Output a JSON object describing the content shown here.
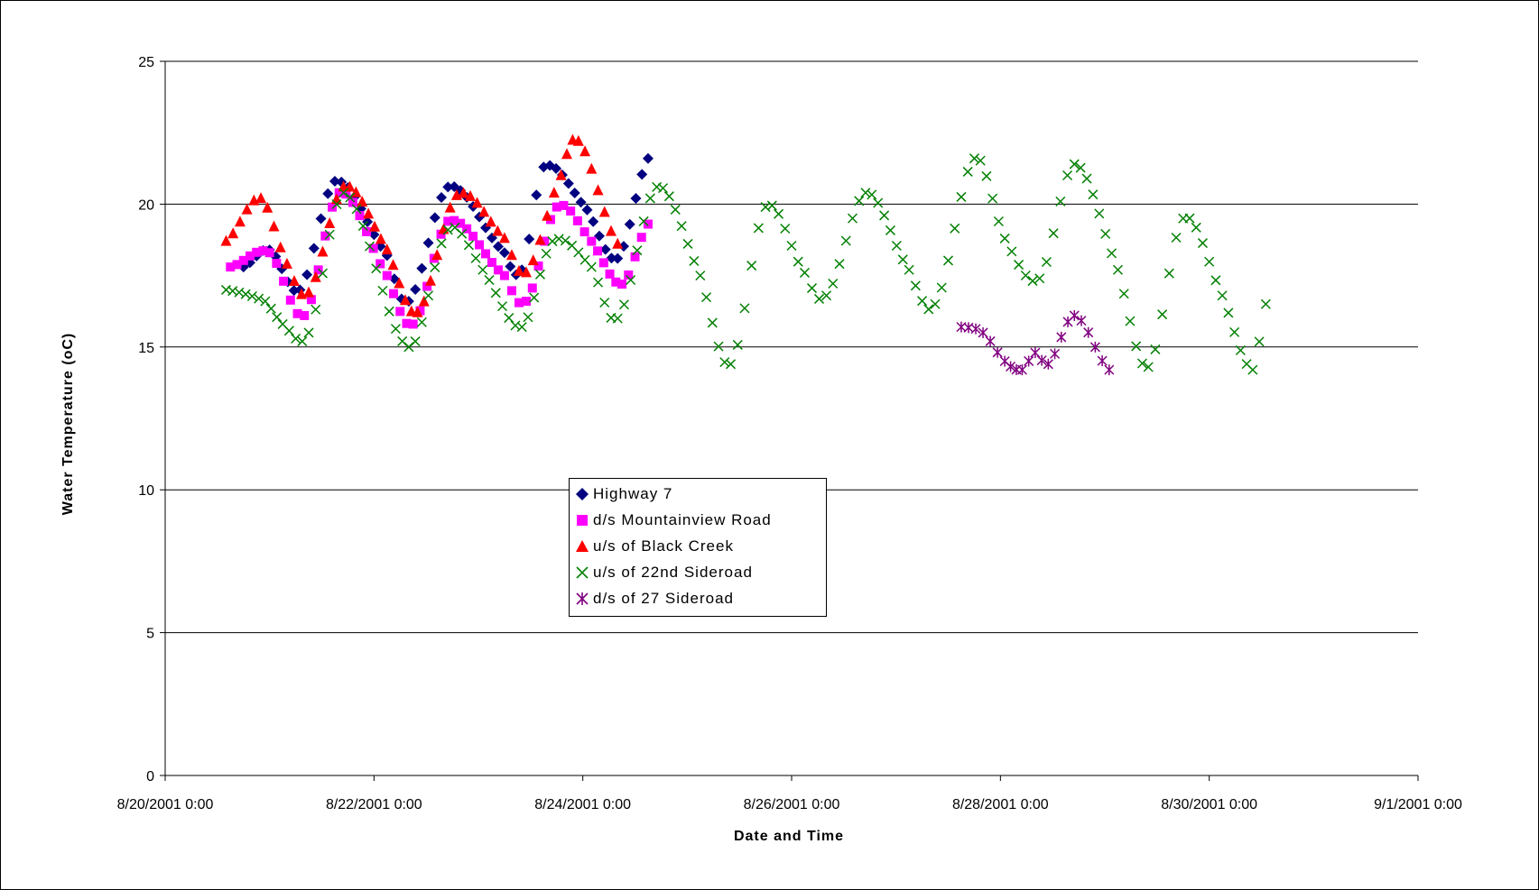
{
  "chart_data": {
    "type": "scatter",
    "xlabel": "Date and Time",
    "ylabel": "Water Temperature (oC)",
    "ylim": [
      0,
      25
    ],
    "yticks": [
      "0",
      "5",
      "10",
      "15",
      "20",
      "25"
    ],
    "xlim": [
      "8/20/2001 0:00",
      "9/1/2001 0:00"
    ],
    "xticks": [
      "8/20/2001 0:00",
      "8/22/2001 0:00",
      "8/24/2001 0:00",
      "8/26/2001 0:00",
      "8/28/2001 0:00",
      "8/30/2001 0:00",
      "9/1/2001 0:00"
    ],
    "grid": "horizontal",
    "legend_position": "center",
    "series": [
      {
        "name": "Highway 7",
        "color": "#000080",
        "marker": "diamond",
        "points": [
          [
            "8/20/2001 18:00",
            17.8
          ],
          [
            "8/21/2001 0:00",
            18.4
          ],
          [
            "8/21/2001 7:00",
            17.0
          ],
          [
            "8/21/2001 15:00",
            20.8
          ],
          [
            "8/22/2001 3:00",
            18.2
          ],
          [
            "8/22/2001 8:00",
            16.6
          ],
          [
            "8/22/2001 17:00",
            20.6
          ],
          [
            "8/23/2001 6:00",
            18.3
          ],
          [
            "8/23/2001 10:00",
            17.7
          ],
          [
            "8/23/2001 15:00",
            21.3
          ],
          [
            "8/24/2001 1:00",
            19.8
          ],
          [
            "8/24/2001 8:00",
            18.1
          ],
          [
            "8/24/2001 15:00",
            21.6
          ]
        ]
      },
      {
        "name": "d/s Mountainview Road",
        "color": "#FF00FF",
        "marker": "square",
        "points": [
          [
            "8/20/2001 15:00",
            17.8
          ],
          [
            "8/21/2001 0:00",
            18.3
          ],
          [
            "8/21/2001 8:00",
            16.1
          ],
          [
            "8/21/2001 16:00",
            20.4
          ],
          [
            "8/22/2001 3:00",
            17.5
          ],
          [
            "8/22/2001 9:00",
            15.8
          ],
          [
            "8/22/2001 17:00",
            19.4
          ],
          [
            "8/23/2001 6:00",
            17.5
          ],
          [
            "8/23/2001 11:00",
            16.6
          ],
          [
            "8/23/2001 18:00",
            19.9
          ],
          [
            "8/24/2001 2:00",
            18.7
          ],
          [
            "8/24/2001 9:00",
            17.2
          ],
          [
            "8/24/2001 15:00",
            19.3
          ]
        ]
      },
      {
        "name": "u/s of Black Creek",
        "color": "#FF0000",
        "marker": "triangle",
        "points": [
          [
            "8/20/2001 14:00",
            18.7
          ],
          [
            "8/20/2001 22:00",
            20.2
          ],
          [
            "8/21/2001 4:00",
            17.9
          ],
          [
            "8/21/2001 9:00",
            16.9
          ],
          [
            "8/21/2001 17:00",
            20.6
          ],
          [
            "8/22/2001 3:00",
            18.4
          ],
          [
            "8/22/2001 10:00",
            16.2
          ],
          [
            "8/22/2001 19:00",
            20.3
          ],
          [
            "8/23/2001 6:00",
            18.8
          ],
          [
            "8/23/2001 11:00",
            17.6
          ],
          [
            "8/23/2001 19:00",
            21.0
          ],
          [
            "8/23/2001 23:00",
            22.2
          ],
          [
            "8/24/2001 8:00",
            18.6
          ]
        ]
      },
      {
        "name": "u/s of 22nd Sideroad",
        "color": "#008000",
        "marker": "x",
        "points": [
          [
            "8/20/2001 14:00",
            17.0
          ],
          [
            "8/20/2001 23:00",
            16.6
          ],
          [
            "8/21/2001 3:00",
            15.8
          ],
          [
            "8/21/2001 9:00",
            15.5
          ],
          [
            "8/21/2001 17:00",
            20.4
          ],
          [
            "8/22/2001 8:00",
            15.0
          ],
          [
            "8/22/2001 17:00",
            19.1
          ],
          [
            "8/23/2001 1:00",
            17.7
          ],
          [
            "8/23/2001 10:00",
            15.7
          ],
          [
            "8/23/2001 17:00",
            18.7
          ],
          [
            "8/24/2001 2:00",
            17.8
          ],
          [
            "8/24/2001 8:00",
            16.0
          ],
          [
            "8/24/2001 17:00",
            20.6
          ],
          [
            "8/25/2001 3:00",
            17.5
          ],
          [
            "8/25/2001 10:00",
            14.4
          ],
          [
            "8/25/2001 18:00",
            19.9
          ],
          [
            "8/26/2001 3:00",
            17.6
          ],
          [
            "8/26/2001 8:00",
            16.8
          ],
          [
            "8/26/2001 17:00",
            20.4
          ],
          [
            "8/27/2001 3:00",
            17.7
          ],
          [
            "8/27/2001 9:00",
            16.5
          ],
          [
            "8/27/2001 18:00",
            21.6
          ],
          [
            "8/28/2001 1:00",
            18.8
          ],
          [
            "8/28/2001 9:00",
            17.4
          ],
          [
            "8/28/2001 17:00",
            21.4
          ],
          [
            "8/29/2001 3:00",
            17.7
          ],
          [
            "8/29/2001 10:00",
            14.3
          ],
          [
            "8/29/2001 18:00",
            19.5
          ],
          [
            "8/30/2001 3:00",
            16.8
          ],
          [
            "8/30/2001 10:00",
            14.2
          ],
          [
            "8/30/2001 13:00",
            16.5
          ]
        ]
      },
      {
        "name": "d/s of 27 Sideroad",
        "color": "#800080",
        "marker": "asterisk",
        "points": [
          [
            "8/27/2001 15:00",
            15.7
          ],
          [
            "8/27/2001 20:00",
            15.5
          ],
          [
            "8/28/2001 1:00",
            14.5
          ],
          [
            "8/28/2001 5:00",
            14.2
          ],
          [
            "8/28/2001 8:00",
            14.8
          ],
          [
            "8/28/2001 11:00",
            14.4
          ],
          [
            "8/28/2001 17:00",
            16.1
          ],
          [
            "8/29/2001 1:00",
            14.2
          ]
        ]
      }
    ]
  }
}
